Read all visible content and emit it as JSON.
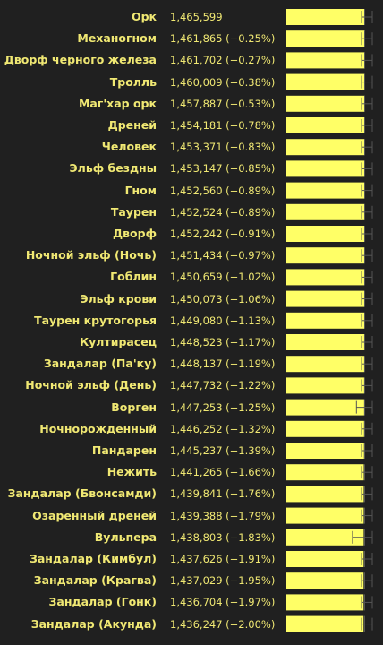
{
  "chart_data": {
    "type": "bar",
    "orientation": "horizontal",
    "bar_color": "#ffff66",
    "label_color": "#f0e873",
    "background": "#202020",
    "categories": [
      "Орк",
      "Механогном",
      "Дворф черного железа",
      "Тролль",
      "Маг'хар орк",
      "Дреней",
      "Человек",
      "Эльф бездны",
      "Гном",
      "Таурен",
      "Дворф",
      "Ночной эльф (Ночь)",
      "Гоблин",
      "Эльф крови",
      "Таурен крутогорья",
      "Култирасец",
      "Зандалар (Па'ку)",
      "Ночной эльф (День)",
      "Ворген",
      "Ночнорожденный",
      "Пандарен",
      "Нежить",
      "Зандалар (Бвонсамди)",
      "Озаренный дреней",
      "Вульпера",
      "Зандалар (Кимбул)",
      "Зандалар (Крагва)",
      "Зандалар (Гонк)",
      "Зандалар (Акунда)"
    ],
    "values": [
      1465599,
      1461865,
      1461702,
      1460009,
      1457887,
      1454181,
      1453371,
      1453147,
      1452560,
      1452524,
      1452242,
      1451434,
      1450659,
      1450073,
      1449080,
      1448523,
      1448137,
      1447732,
      1447253,
      1446252,
      1445237,
      1441265,
      1439841,
      1439388,
      1438803,
      1437626,
      1437029,
      1436704,
      1436247
    ],
    "value_labels": [
      "1,465,599",
      "1,461,865 (−0.25%)",
      "1,461,702 (−0.27%)",
      "1,460,009 (−0.38%)",
      "1,457,887 (−0.53%)",
      "1,454,181 (−0.78%)",
      "1,453,371 (−0.83%)",
      "1,453,147 (−0.85%)",
      "1,452,560 (−0.89%)",
      "1,452,524 (−0.89%)",
      "1,452,242 (−0.91%)",
      "1,451,434 (−0.97%)",
      "1,450,659 (−1.02%)",
      "1,450,073 (−1.06%)",
      "1,449,080 (−1.13%)",
      "1,448,523 (−1.17%)",
      "1,448,137 (−1.19%)",
      "1,447,732 (−1.22%)",
      "1,447,253 (−1.25%)",
      "1,446,252 (−1.32%)",
      "1,445,237 (−1.39%)",
      "1,441,265 (−1.66%)",
      "1,439,841 (−1.76%)",
      "1,439,388 (−1.79%)",
      "1,438,803 (−1.83%)",
      "1,437,626 (−1.91%)",
      "1,437,029 (−1.95%)",
      "1,436,704 (−1.97%)",
      "1,436,247 (−2.00%)"
    ],
    "error_low_fraction": [
      0.955,
      0.955,
      0.955,
      0.955,
      0.955,
      0.955,
      0.955,
      0.955,
      0.955,
      0.955,
      0.955,
      0.955,
      0.955,
      0.955,
      0.955,
      0.955,
      0.955,
      0.955,
      0.89,
      0.955,
      0.955,
      0.955,
      0.955,
      0.955,
      0.84,
      0.955,
      0.955,
      0.955,
      0.955
    ],
    "xlim": [
      0,
      1465599
    ]
  }
}
